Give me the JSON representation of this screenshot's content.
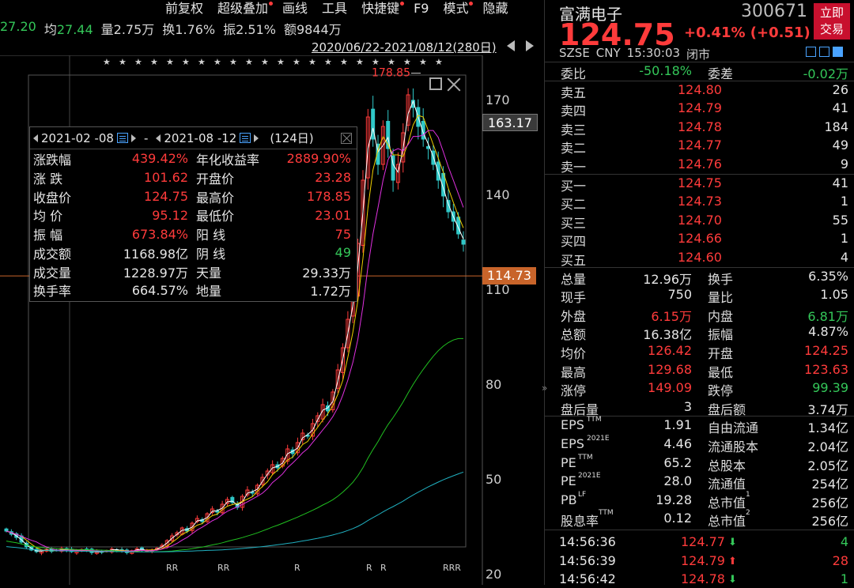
{
  "menu": [
    {
      "label": "前复权",
      "dot": false
    },
    {
      "label": "超级叠加",
      "dot": true
    },
    {
      "label": "画线",
      "dot": false
    },
    {
      "label": "工具",
      "dot": false
    },
    {
      "label": "快捷键",
      "dot": true
    },
    {
      "label": "F9",
      "dot": false
    },
    {
      "label": "模式",
      "dot": true
    },
    {
      "label": "隐藏",
      "dot": false
    }
  ],
  "ohlc_row": {
    "low_val": "27.20",
    "avg_label": "均",
    "avg_val": "27.44",
    "vol": "量2.75万",
    "turnover": "换1.76%",
    "amplitude": "振2.51%",
    "amount": "额9844万"
  },
  "date_range": "2020/06/22-2021/08/12(280日)",
  "price_axis": [
    {
      "label": "170",
      "value": 170
    },
    {
      "label": "140",
      "value": 140
    },
    {
      "label": "110",
      "value": 110
    },
    {
      "label": "80",
      "value": 80
    },
    {
      "label": "50",
      "value": 50
    },
    {
      "label": "20",
      "value": 20
    }
  ],
  "price_tags": {
    "crosshair": "163.17",
    "crosshair_value": 163.17,
    "current": "114.73",
    "current_value": 114.73
  },
  "high_label": "178.85",
  "stats": {
    "start_date": "2021-02 -08",
    "sep": "-",
    "end_date": "2021-08 -12",
    "days": "(124日)",
    "rows": [
      {
        "l1": "涨跌幅",
        "v1": "439.42%",
        "c1": "red",
        "l2": "年化收益率",
        "v2": "2889.90%",
        "c2": "red"
      },
      {
        "l1": "涨  跌",
        "v1": "101.62",
        "c1": "red",
        "l2": "开盘价",
        "v2": "23.28",
        "c2": "red"
      },
      {
        "l1": "收盘价",
        "v1": "124.75",
        "c1": "red",
        "l2": "最高价",
        "v2": "178.85",
        "c2": "red"
      },
      {
        "l1": "均  价",
        "v1": "95.12",
        "c1": "red",
        "l2": "最低价",
        "v2": "23.01",
        "c2": "red"
      },
      {
        "l1": "振  幅",
        "v1": "673.84%",
        "c1": "red",
        "l2": "阳  线",
        "v2": "75",
        "c2": "red"
      },
      {
        "l1": "成交额",
        "v1": "1168.98亿",
        "c1": "white",
        "l2": "阴  线",
        "v2": "49",
        "c2": "green"
      },
      {
        "l1": "成交量",
        "v1": "1228.97万",
        "c1": "white",
        "l2": "天量",
        "v2": "29.33万",
        "c2": "white"
      },
      {
        "l1": "换手率",
        "v1": "664.57%",
        "c1": "white",
        "l2": "地量",
        "v2": "1.72万",
        "c2": "white"
      }
    ]
  },
  "quote": {
    "name": "富满电子",
    "code": "300671",
    "trade_btn_line1": "立即",
    "trade_btn_line2": "交易",
    "last_price": "124.75",
    "change": "+0.41% (+0.51)",
    "market": "SZSE",
    "currency": "CNY",
    "time": "15:30:03",
    "status": "闭市",
    "ratio_row": {
      "l1": "委比",
      "v1": "-50.18%",
      "l2": "委差",
      "v2": "-0.02万"
    },
    "asks": [
      {
        "label": "卖五",
        "price": "124.80",
        "vol": "26"
      },
      {
        "label": "卖四",
        "price": "124.79",
        "vol": "41"
      },
      {
        "label": "卖三",
        "price": "124.78",
        "vol": "184"
      },
      {
        "label": "卖二",
        "price": "124.77",
        "vol": "49"
      },
      {
        "label": "卖一",
        "price": "124.76",
        "vol": "9"
      }
    ],
    "bids": [
      {
        "label": "买一",
        "price": "124.75",
        "vol": "41"
      },
      {
        "label": "买二",
        "price": "124.73",
        "vol": "1"
      },
      {
        "label": "买三",
        "price": "124.70",
        "vol": "55"
      },
      {
        "label": "买四",
        "price": "124.66",
        "vol": "1"
      },
      {
        "label": "买五",
        "price": "124.60",
        "vol": "4"
      }
    ],
    "details": [
      {
        "l1": "总量",
        "v1": "12.96万",
        "c1": "white",
        "l2": "换手",
        "v2": "6.35%",
        "c2": "white"
      },
      {
        "l1": "现手",
        "v1": "750",
        "c1": "white",
        "l2": "量比",
        "v2": "1.05",
        "c2": "white"
      },
      {
        "l1": "外盘",
        "v1": "6.15万",
        "c1": "red",
        "l2": "内盘",
        "v2": "6.81万",
        "c2": "green"
      },
      {
        "l1": "总额",
        "v1": "16.38亿",
        "c1": "white",
        "l2": "振幅",
        "v2": "4.87%",
        "c2": "white"
      },
      {
        "l1": "均价",
        "v1": "126.42",
        "c1": "red",
        "l2": "开盘",
        "v2": "124.25",
        "c2": "red"
      },
      {
        "l1": "最高",
        "v1": "129.68",
        "c1": "red",
        "l2": "最低",
        "v2": "123.63",
        "c2": "red"
      },
      {
        "l1": "涨停",
        "v1": "149.09",
        "c1": "red",
        "l2": "跌停",
        "v2": "99.39",
        "c2": "green"
      },
      {
        "l1": "盘后量",
        "v1": "3",
        "c1": "white",
        "l2": "盘后额",
        "v2": "3.74万",
        "c2": "white"
      }
    ],
    "fundamentals": [
      {
        "l1": "EPS",
        "s1": "TTM",
        "v1": "1.91",
        "l2": "自由流通",
        "s2": "",
        "v2": "1.34亿"
      },
      {
        "l1": "EPS",
        "s1": "2021E",
        "v1": "4.46",
        "l2": "流通股本",
        "s2": "",
        "v2": "2.04亿"
      },
      {
        "l1": "PE",
        "s1": "TTM",
        "v1": "65.2",
        "l2": "总股本",
        "s2": "",
        "v2": "2.05亿"
      },
      {
        "l1": "PE",
        "s1": "2021E",
        "v1": "28.0",
        "l2": "流通值",
        "s2": "",
        "v2": "254亿"
      },
      {
        "l1": "PB",
        "s1": "LF",
        "v1": "19.28",
        "l2": "总市值",
        "s2": "1",
        "v2": "256亿"
      },
      {
        "l1": "股息率",
        "s1": "TTM",
        "v1": "0.12",
        "l2": "总市值",
        "s2": "2",
        "v2": "256亿"
      }
    ],
    "ticks": [
      {
        "time": "14:56:36",
        "price": "124.77",
        "dir": "down",
        "vol": "4"
      },
      {
        "time": "14:56:39",
        "price": "124.79",
        "dir": "up",
        "vol": "28"
      },
      {
        "time": "14:56:42",
        "price": "124.78",
        "dir": "down",
        "vol": "1"
      }
    ]
  },
  "chart_data": {
    "type": "candlestick",
    "y_range": [
      15,
      185
    ],
    "y_ticks": [
      170,
      140,
      110,
      80,
      50,
      20
    ],
    "highlight_high": 178.85,
    "closes": [
      34.0,
      33.0,
      32.0,
      30.5,
      29.0,
      28.0,
      27.5,
      27.8,
      28.2,
      27.6,
      27.9,
      28.5,
      28.0,
      27.5,
      27.8,
      28.2,
      27.9,
      27.2,
      27.6,
      27.3,
      27.8,
      28.3,
      28.0,
      27.6,
      27.2,
      27.8,
      28.4,
      28.1,
      27.7,
      28.0,
      28.6,
      29.5,
      31.0,
      32.5,
      33.5,
      35.0,
      34.0,
      36.5,
      38.0,
      37.0,
      39.5,
      41.0,
      40.0,
      42.5,
      44.0,
      43.0,
      41.5,
      45.0,
      47.0,
      46.0,
      48.5,
      51.0,
      53.0,
      55.0,
      54.0,
      57.0,
      60.0,
      58.5,
      62.0,
      65.0,
      64.0,
      68.0,
      70.5,
      74.0,
      72.0,
      78.0,
      85.0,
      92.0,
      101.0,
      110.0,
      125.0,
      145.0,
      165.0,
      158.0,
      150.0,
      162.0,
      155.0,
      145.0,
      150.0,
      160.0,
      172.0,
      168.0,
      162.0,
      158.0,
      155.0,
      150.0,
      145.0,
      140.0,
      135.0,
      132.0,
      128.0,
      124.75
    ],
    "ma_colors": [
      "#ffffff",
      "#f0d000",
      "#e030e0",
      "#20c020",
      "#20b0c0"
    ],
    "r_markers": [
      "RR",
      "RR",
      "R",
      "R",
      "R",
      "RRR"
    ]
  }
}
